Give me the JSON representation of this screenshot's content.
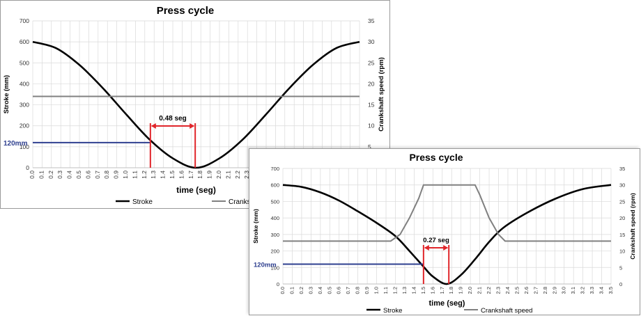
{
  "colors": {
    "stroke_line": "#000000",
    "speed_line": "#808080",
    "grid": "#d9d9d9",
    "marker_red": "#e0252a",
    "marker_blue": "#2e3f8f"
  },
  "chart_data": [
    {
      "type": "line",
      "title": "Press cycle",
      "xlabel": "time (seg)",
      "ylabel": "Stroke  (mm)",
      "y2label": "Crankshaft speed (rpm)",
      "xlim": [
        0,
        3.5
      ],
      "ylim": [
        0,
        700
      ],
      "y2lim": [
        0,
        35
      ],
      "x_tick_step": 0.1,
      "y_ticks": [
        0,
        100,
        200,
        300,
        400,
        500,
        600,
        700
      ],
      "y2_ticks": [
        0,
        5,
        10,
        15,
        20,
        25,
        30,
        35
      ],
      "grid": true,
      "legend_position": "bottom",
      "series": [
        {
          "name": "Stroke",
          "axis": "left",
          "color": "#000000",
          "x": [
            0,
            0.25,
            0.5,
            0.75,
            1.0,
            1.25,
            1.5,
            1.75,
            2.0,
            2.25,
            2.5,
            2.75,
            3.0,
            3.25,
            3.5
          ],
          "values": [
            600,
            570,
            490,
            380,
            255,
            135,
            45,
            0,
            45,
            135,
            255,
            380,
            490,
            570,
            600
          ]
        },
        {
          "name": "Crankshaft speed",
          "axis": "right",
          "color": "#808080",
          "x": [
            0,
            3.5
          ],
          "values": [
            17,
            17
          ]
        }
      ],
      "annotations": {
        "level_label": "120mm",
        "level_value": 120,
        "level_x": 1.26,
        "interval_label": "0.48 seg",
        "interval_start": 1.26,
        "interval_end": 1.74
      }
    },
    {
      "type": "line",
      "title": "Press cycle",
      "xlabel": "time (seg)",
      "ylabel": "Stroke  (mm)",
      "y2label": "Crankshaft speed (rpm)",
      "xlim": [
        0,
        3.5
      ],
      "ylim": [
        0,
        700
      ],
      "y2lim": [
        0,
        35
      ],
      "x_tick_step": 0.1,
      "y_ticks": [
        0,
        100,
        200,
        300,
        400,
        500,
        600,
        700
      ],
      "y2_ticks": [
        0,
        5,
        10,
        15,
        20,
        25,
        30,
        35
      ],
      "grid": true,
      "legend_position": "bottom",
      "series": [
        {
          "name": "Stroke",
          "axis": "left",
          "color": "#000000",
          "x": [
            0,
            0.2,
            0.4,
            0.6,
            0.8,
            1.0,
            1.2,
            1.35,
            1.5,
            1.6,
            1.75,
            1.9,
            2.05,
            2.2,
            2.35,
            2.6,
            2.9,
            3.2,
            3.5
          ],
          "values": [
            600,
            588,
            555,
            505,
            440,
            370,
            290,
            200,
            105,
            45,
            0,
            55,
            150,
            255,
            340,
            430,
            515,
            575,
            600
          ]
        },
        {
          "name": "Crankshaft speed",
          "axis": "right",
          "color": "#808080",
          "x": [
            0,
            1.15,
            1.25,
            1.35,
            1.45,
            1.5,
            2.05,
            2.1,
            2.2,
            2.3,
            2.37,
            3.5
          ],
          "values": [
            13,
            13,
            15,
            20,
            26,
            30,
            30,
            27,
            20,
            15,
            13,
            13
          ]
        }
      ],
      "annotations": {
        "level_label": "120mm",
        "level_value": 120,
        "level_x": 1.5,
        "interval_label": "0.27 seg",
        "interval_start": 1.5,
        "interval_end": 1.77
      }
    }
  ]
}
